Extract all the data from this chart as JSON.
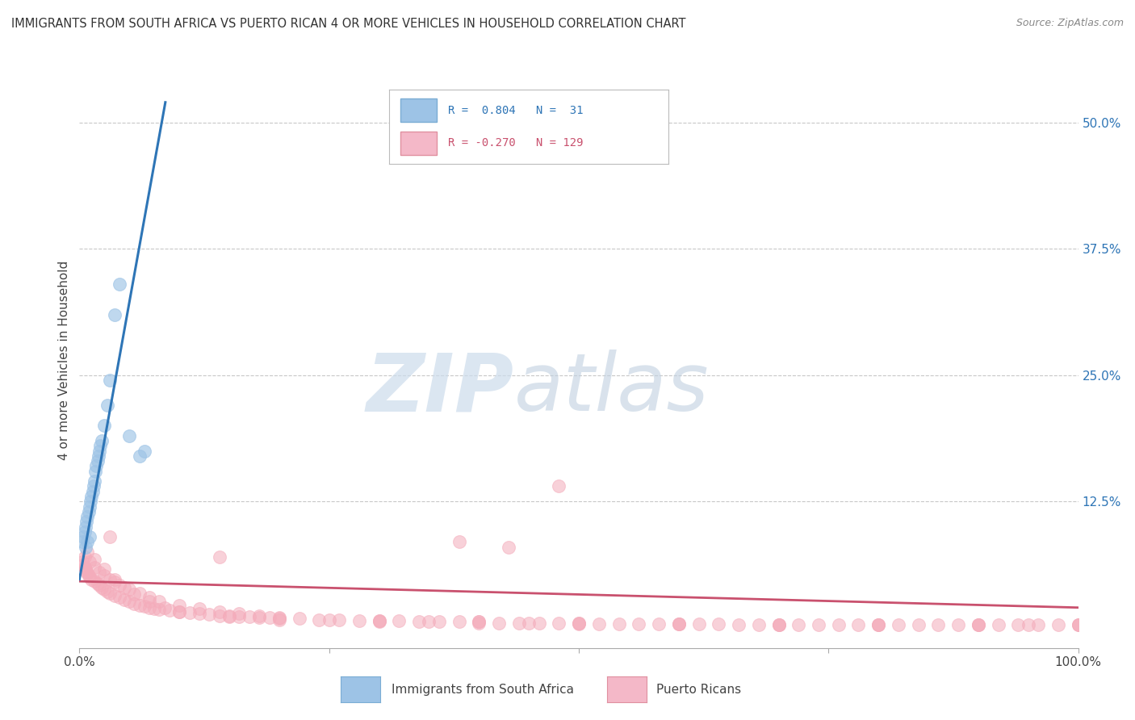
{
  "title": "IMMIGRANTS FROM SOUTH AFRICA VS PUERTO RICAN 4 OR MORE VEHICLES IN HOUSEHOLD CORRELATION CHART",
  "source": "Source: ZipAtlas.com",
  "ylabel": "4 or more Vehicles in Household",
  "xlim": [
    0.0,
    1.0
  ],
  "ylim": [
    -0.02,
    0.55
  ],
  "y_ticks_right": [
    0.0,
    0.125,
    0.25,
    0.375,
    0.5
  ],
  "y_tick_labels_right": [
    "",
    "12.5%",
    "25.0%",
    "37.5%",
    "50.0%"
  ],
  "blue_scatter_x": [
    0.003,
    0.004,
    0.005,
    0.006,
    0.007,
    0.008,
    0.009,
    0.01,
    0.011,
    0.012,
    0.013,
    0.014,
    0.015,
    0.016,
    0.017,
    0.018,
    0.019,
    0.02,
    0.021,
    0.022,
    0.025,
    0.028,
    0.03,
    0.035,
    0.04,
    0.05,
    0.06,
    0.065,
    0.006,
    0.008,
    0.01
  ],
  "blue_scatter_y": [
    0.085,
    0.09,
    0.095,
    0.1,
    0.105,
    0.11,
    0.115,
    0.12,
    0.125,
    0.13,
    0.135,
    0.14,
    0.145,
    0.155,
    0.16,
    0.165,
    0.17,
    0.175,
    0.18,
    0.185,
    0.2,
    0.22,
    0.245,
    0.31,
    0.34,
    0.19,
    0.17,
    0.175,
    0.08,
    0.085,
    0.09
  ],
  "pink_scatter_x": [
    0.003,
    0.004,
    0.005,
    0.006,
    0.007,
    0.008,
    0.009,
    0.01,
    0.012,
    0.015,
    0.018,
    0.02,
    0.022,
    0.025,
    0.028,
    0.03,
    0.035,
    0.04,
    0.045,
    0.05,
    0.055,
    0.06,
    0.065,
    0.07,
    0.075,
    0.08,
    0.09,
    0.1,
    0.11,
    0.12,
    0.13,
    0.14,
    0.15,
    0.16,
    0.17,
    0.18,
    0.19,
    0.2,
    0.22,
    0.24,
    0.26,
    0.28,
    0.3,
    0.32,
    0.34,
    0.36,
    0.38,
    0.4,
    0.42,
    0.44,
    0.46,
    0.48,
    0.5,
    0.52,
    0.54,
    0.56,
    0.58,
    0.6,
    0.62,
    0.64,
    0.66,
    0.68,
    0.7,
    0.72,
    0.74,
    0.76,
    0.78,
    0.8,
    0.82,
    0.84,
    0.86,
    0.88,
    0.9,
    0.92,
    0.94,
    0.96,
    0.98,
    1.0,
    0.005,
    0.01,
    0.015,
    0.02,
    0.025,
    0.03,
    0.035,
    0.04,
    0.05,
    0.06,
    0.07,
    0.08,
    0.1,
    0.12,
    0.14,
    0.16,
    0.18,
    0.2,
    0.25,
    0.3,
    0.35,
    0.4,
    0.45,
    0.5,
    0.6,
    0.7,
    0.8,
    0.9,
    0.95,
    1.0,
    0.008,
    0.015,
    0.025,
    0.035,
    0.045,
    0.055,
    0.07,
    0.085,
    0.1,
    0.15,
    0.2,
    0.3,
    0.4,
    0.5,
    0.6,
    0.7,
    0.8,
    0.9,
    1.0,
    0.48,
    0.03,
    0.38,
    0.43,
    0.14
  ],
  "pink_scatter_y": [
    0.065,
    0.062,
    0.06,
    0.058,
    0.056,
    0.054,
    0.052,
    0.05,
    0.048,
    0.046,
    0.044,
    0.042,
    0.04,
    0.038,
    0.036,
    0.034,
    0.032,
    0.03,
    0.028,
    0.026,
    0.024,
    0.022,
    0.021,
    0.02,
    0.019,
    0.018,
    0.017,
    0.016,
    0.015,
    0.014,
    0.013,
    0.012,
    0.012,
    0.011,
    0.011,
    0.01,
    0.01,
    0.009,
    0.009,
    0.008,
    0.008,
    0.007,
    0.007,
    0.007,
    0.006,
    0.006,
    0.006,
    0.006,
    0.005,
    0.005,
    0.005,
    0.005,
    0.005,
    0.004,
    0.004,
    0.004,
    0.004,
    0.004,
    0.004,
    0.004,
    0.003,
    0.003,
    0.003,
    0.003,
    0.003,
    0.003,
    0.003,
    0.003,
    0.003,
    0.003,
    0.003,
    0.003,
    0.003,
    0.003,
    0.003,
    0.003,
    0.003,
    0.003,
    0.07,
    0.065,
    0.06,
    0.055,
    0.052,
    0.048,
    0.045,
    0.042,
    0.038,
    0.034,
    0.03,
    0.026,
    0.022,
    0.019,
    0.016,
    0.014,
    0.012,
    0.01,
    0.008,
    0.007,
    0.006,
    0.006,
    0.005,
    0.005,
    0.004,
    0.003,
    0.003,
    0.003,
    0.003,
    0.003,
    0.075,
    0.068,
    0.058,
    0.048,
    0.04,
    0.033,
    0.026,
    0.02,
    0.016,
    0.011,
    0.008,
    0.006,
    0.005,
    0.004,
    0.004,
    0.003,
    0.003,
    0.003,
    0.003,
    0.14,
    0.09,
    0.085,
    0.08,
    0.07
  ],
  "blue_line_x": [
    0.0,
    0.086
  ],
  "blue_line_y": [
    0.048,
    0.52
  ],
  "pink_line_x": [
    0.0,
    1.0
  ],
  "pink_line_y": [
    0.046,
    0.02
  ],
  "blue_dot_color": "#9dc3e6",
  "pink_dot_color": "#f4acbb",
  "blue_line_color": "#2e75b6",
  "pink_line_color": "#c9516e",
  "background_color": "#ffffff",
  "grid_color": "#c8c8c8",
  "watermark_zip_color": "#ccdcec",
  "watermark_atlas_color": "#c5d5e5"
}
